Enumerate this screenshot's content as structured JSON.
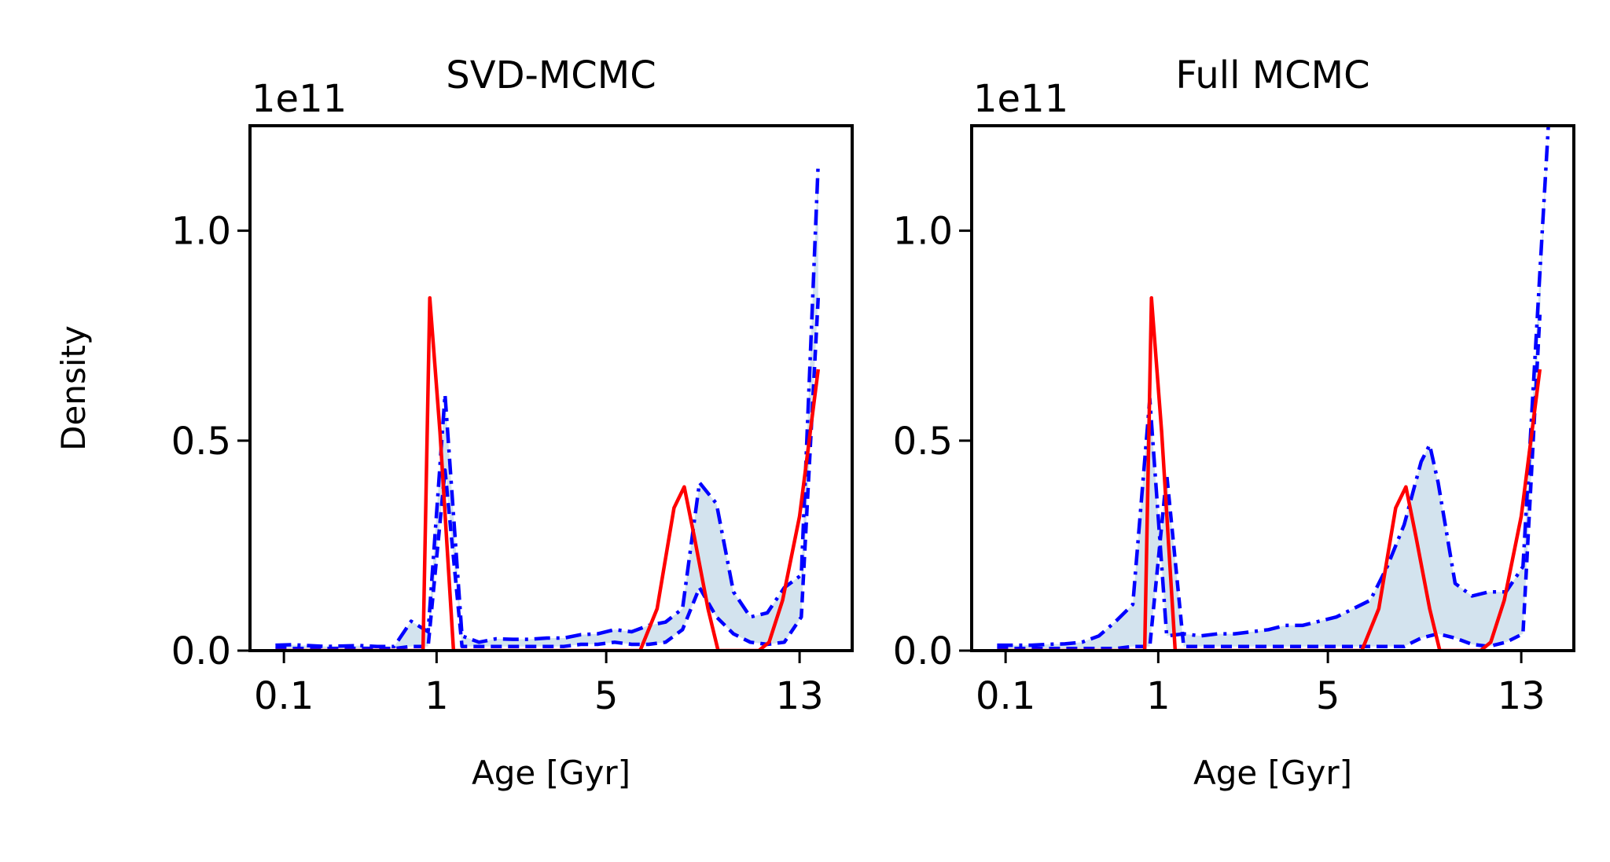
{
  "chart_data": [
    {
      "type": "line",
      "title": "SVD-MCMC",
      "xlabel": "Age [Gyr]",
      "ylabel": "Density",
      "y_offset_text": "1e11",
      "xlim": [
        0,
        35.5
      ],
      "ylim": [
        0,
        1.25
      ],
      "xticks": [
        {
          "pos": 2,
          "label": "0.1"
        },
        {
          "pos": 11,
          "label": "1"
        },
        {
          "pos": 21,
          "label": "5"
        },
        {
          "pos": 32.4,
          "label": "13"
        }
      ],
      "yticks": [
        {
          "value": 0,
          "label": "0.0"
        },
        {
          "value": 0.5,
          "label": "0.5"
        },
        {
          "value": 1.0,
          "label": "1.0"
        }
      ],
      "colors": {
        "band": "#d3e3ee",
        "upper": "#0000ff",
        "lower": "#0000ff",
        "truth": "#ff0000"
      },
      "series": [
        {
          "role": "upper",
          "style": "dashdot",
          "x": [
            1.5,
            2.5,
            3.5,
            4.5,
            5.5,
            6.5,
            7.5,
            8.5,
            9.5,
            10.5,
            11.5,
            12.5,
            13.5,
            14.5,
            15.5,
            16.5,
            17.5,
            18.5,
            19.5,
            20.5,
            21.5,
            22.5,
            23.5,
            24.5,
            25.5,
            26.5,
            27.5,
            28.5,
            29.5,
            30.5,
            31.5,
            32.5,
            33.5
          ],
          "y": [
            0.013,
            0.014,
            0.012,
            0.01,
            0.011,
            0.012,
            0.01,
            0.01,
            0.07,
            0.045,
            0.61,
            0.035,
            0.02,
            0.028,
            0.027,
            0.027,
            0.03,
            0.03,
            0.038,
            0.04,
            0.05,
            0.045,
            0.06,
            0.068,
            0.1,
            0.4,
            0.35,
            0.14,
            0.08,
            0.09,
            0.15,
            0.18,
            1.16
          ]
        },
        {
          "role": "lower",
          "style": "dashed",
          "x": [
            1.5,
            2.5,
            3.5,
            4.5,
            5.5,
            6.5,
            7.5,
            8.5,
            9.5,
            10.5,
            11.5,
            12.5,
            13.5,
            14.5,
            15.5,
            16.5,
            17.5,
            18.5,
            19.5,
            20.5,
            21.5,
            22.5,
            23.5,
            24.5,
            25.5,
            26.5,
            27.5,
            28.5,
            29.5,
            30.5,
            31.5,
            32.5,
            33.5
          ],
          "y": [
            0.005,
            0.005,
            0.005,
            0.005,
            0.005,
            0.005,
            0.005,
            0.005,
            0.01,
            0.01,
            0.43,
            0.01,
            0.01,
            0.01,
            0.01,
            0.01,
            0.01,
            0.01,
            0.015,
            0.015,
            0.02,
            0.015,
            0.015,
            0.02,
            0.05,
            0.15,
            0.08,
            0.04,
            0.02,
            0.015,
            0.02,
            0.08,
            0.84
          ]
        },
        {
          "role": "truth",
          "style": "solid",
          "x": [
            1.5,
            2.5,
            3.5,
            4.5,
            5.5,
            6.5,
            7.5,
            8.5,
            9.5,
            10.2,
            10.6,
            11.2,
            12.0,
            12.5,
            13.5,
            14.5,
            15.5,
            16.5,
            17.5,
            18.5,
            19.5,
            20.5,
            21.5,
            22.5,
            23.0,
            24.0,
            25.0,
            25.6,
            26.2,
            27.0,
            27.6,
            28.2,
            29.0,
            30.0,
            30.6,
            31.4,
            32.4,
            33.5
          ],
          "y": [
            0,
            0,
            0,
            0,
            0,
            0,
            0,
            0,
            0,
            0,
            0.84,
            0.52,
            0,
            0,
            0,
            0,
            0,
            0,
            0,
            0,
            0,
            0,
            0,
            0,
            0,
            0.1,
            0.34,
            0.39,
            0.27,
            0.1,
            0,
            0,
            0,
            0,
            0.02,
            0.12,
            0.32,
            0.67
          ]
        }
      ]
    },
    {
      "type": "line",
      "title": "Full MCMC",
      "xlabel": "Age [Gyr]",
      "ylabel": "",
      "y_offset_text": "1e11",
      "xlim": [
        0,
        35.5
      ],
      "ylim": [
        0,
        1.25
      ],
      "xticks": [
        {
          "pos": 2,
          "label": "0.1"
        },
        {
          "pos": 11,
          "label": "1"
        },
        {
          "pos": 21,
          "label": "5"
        },
        {
          "pos": 32.4,
          "label": "13"
        }
      ],
      "yticks": [
        {
          "value": 0,
          "label": "0.0"
        },
        {
          "value": 0.5,
          "label": "0.5"
        },
        {
          "value": 1.0,
          "label": "1.0"
        }
      ],
      "colors": {
        "band": "#d3e3ee",
        "upper": "#0000ff",
        "lower": "#0000ff",
        "truth": "#ff0000"
      },
      "series": [
        {
          "role": "upper",
          "style": "dashdot",
          "x": [
            1.5,
            2.5,
            3.5,
            4.5,
            5.5,
            6.5,
            7.5,
            8.5,
            9.5,
            10.5,
            11.5,
            12.5,
            13.5,
            14.5,
            15.5,
            16.5,
            17.5,
            18.5,
            19.5,
            20.5,
            21.5,
            22.5,
            23.5,
            24.5,
            25.5,
            26.5,
            27.0,
            27.5,
            28.5,
            29.5,
            30.5,
            31.5,
            32.5,
            33.5,
            34.0
          ],
          "y": [
            0.013,
            0.013,
            0.013,
            0.015,
            0.016,
            0.02,
            0.035,
            0.07,
            0.11,
            0.6,
            0.035,
            0.04,
            0.035,
            0.04,
            0.04,
            0.045,
            0.05,
            0.06,
            0.06,
            0.07,
            0.08,
            0.1,
            0.12,
            0.2,
            0.3,
            0.45,
            0.49,
            0.4,
            0.16,
            0.13,
            0.14,
            0.14,
            0.2,
            0.9,
            1.25
          ]
        },
        {
          "role": "lower",
          "style": "dashed",
          "x": [
            1.5,
            2.5,
            3.5,
            4.5,
            5.5,
            6.5,
            7.5,
            8.5,
            9.5,
            10.5,
            11.5,
            12.5,
            13.5,
            14.5,
            15.5,
            16.5,
            17.5,
            18.5,
            19.5,
            20.5,
            21.5,
            22.5,
            23.5,
            24.5,
            25.5,
            26.5,
            27.5,
            28.5,
            29.5,
            30.5,
            31.5,
            32.5,
            33.5
          ],
          "y": [
            0.005,
            0.005,
            0.005,
            0.005,
            0.005,
            0.005,
            0.005,
            0.005,
            0.01,
            0.01,
            0.42,
            0.01,
            0.01,
            0.01,
            0.01,
            0.01,
            0.01,
            0.01,
            0.01,
            0.01,
            0.01,
            0.01,
            0.01,
            0.01,
            0.01,
            0.03,
            0.04,
            0.03,
            0.015,
            0.01,
            0.02,
            0.04,
            0.8
          ]
        },
        {
          "role": "truth",
          "style": "solid",
          "x": [
            1.5,
            2.5,
            3.5,
            4.5,
            5.5,
            6.5,
            7.5,
            8.5,
            9.5,
            10.2,
            10.6,
            11.2,
            12.0,
            12.5,
            13.5,
            14.5,
            15.5,
            16.5,
            17.5,
            18.5,
            19.5,
            20.5,
            21.5,
            22.5,
            23.0,
            24.0,
            25.0,
            25.6,
            26.2,
            27.0,
            27.6,
            28.2,
            29.0,
            30.0,
            30.6,
            31.4,
            32.4,
            33.5
          ],
          "y": [
            0,
            0,
            0,
            0,
            0,
            0,
            0,
            0,
            0,
            0,
            0.84,
            0.52,
            0,
            0,
            0,
            0,
            0,
            0,
            0,
            0,
            0,
            0,
            0,
            0,
            0,
            0.1,
            0.34,
            0.39,
            0.27,
            0.1,
            0,
            0,
            0,
            0,
            0.02,
            0.12,
            0.32,
            0.67
          ]
        }
      ]
    }
  ]
}
